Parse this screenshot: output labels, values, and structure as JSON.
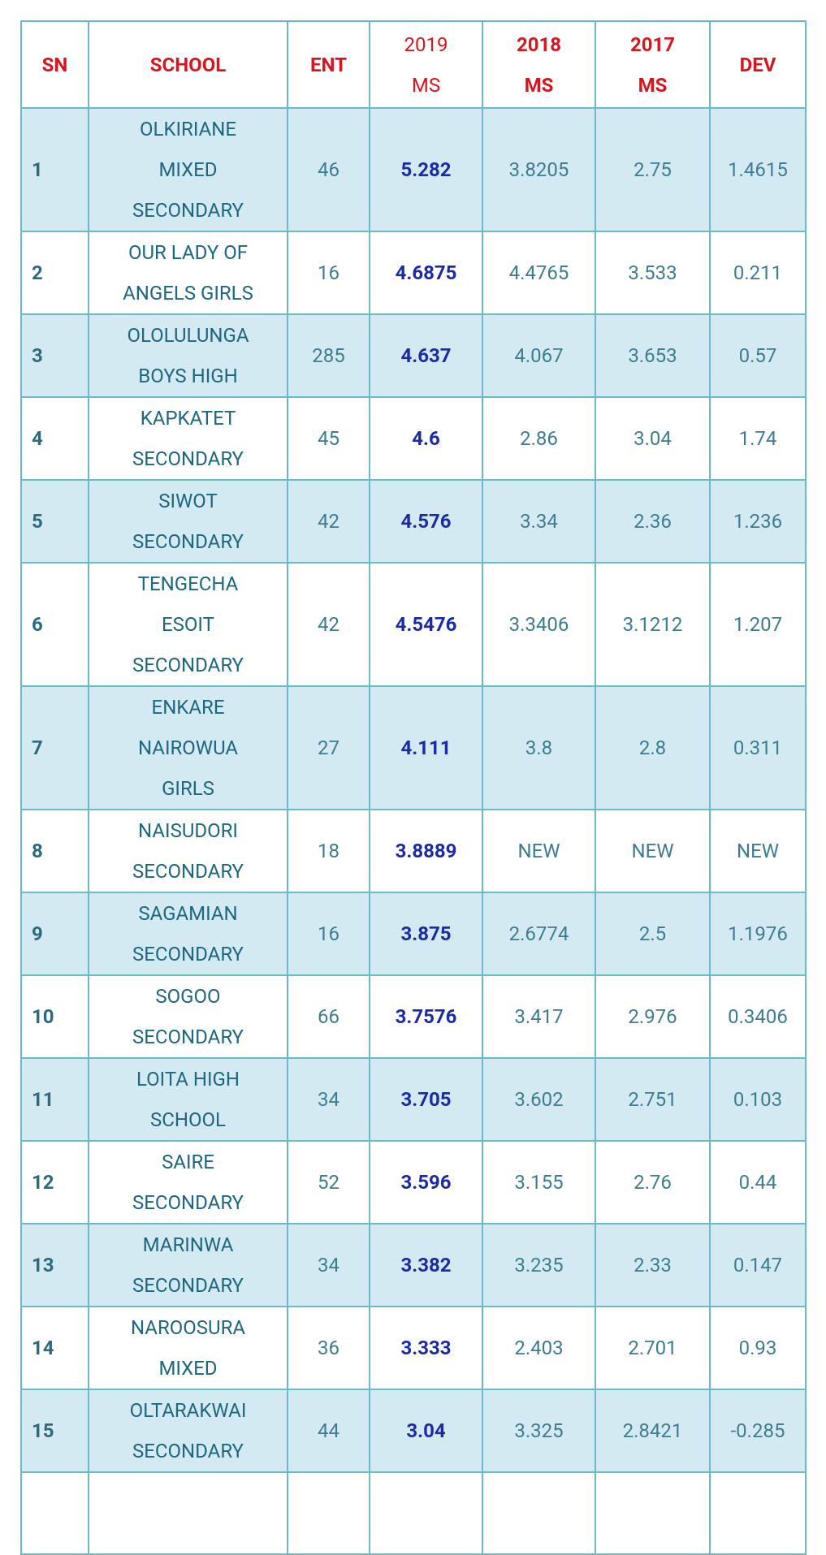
{
  "table": {
    "header": [
      [
        "SN"
      ],
      [
        "SCHOOL"
      ],
      [
        "ENT"
      ],
      [
        "2019",
        "MS"
      ],
      [
        "2018",
        "MS"
      ],
      [
        "2017",
        "MS"
      ],
      [
        "DEV"
      ]
    ],
    "rows": [
      [
        "1",
        [
          "OLKIRIANE",
          "MIXED",
          "SECONDARY"
        ],
        "46",
        "5.282",
        "3.8205",
        "2.75",
        "1.4615"
      ],
      [
        "2",
        [
          "OUR LADY OF",
          "ANGELS GIRLS"
        ],
        "16",
        "4.6875",
        "4.4765",
        "3.533",
        "0.211"
      ],
      [
        "3",
        [
          "OLOLULUNGA",
          "BOYS HIGH"
        ],
        "285",
        "4.637",
        "4.067",
        "3.653",
        "0.57"
      ],
      [
        "4",
        [
          "KAPKATET",
          "SECONDARY"
        ],
        "45",
        "4.6",
        "2.86",
        "3.04",
        "1.74"
      ],
      [
        "5",
        [
          "SIWOT",
          "SECONDARY"
        ],
        "42",
        "4.576",
        "3.34",
        "2.36",
        "1.236"
      ],
      [
        "6",
        [
          "TENGECHA",
          "ESOIT",
          "SECONDARY"
        ],
        "42",
        "4.5476",
        "3.3406",
        "3.1212",
        "1.207"
      ],
      [
        "7",
        [
          "ENKARE",
          "NAIROWUA",
          "GIRLS"
        ],
        "27",
        "4.111",
        "3.8",
        "2.8",
        "0.311"
      ],
      [
        "8",
        [
          "NAISUDORI",
          "SECONDARY"
        ],
        "18",
        "3.8889",
        "NEW",
        "NEW",
        "NEW"
      ],
      [
        "9",
        [
          "SAGAMIAN",
          "SECONDARY"
        ],
        "16",
        "3.875",
        "2.6774",
        "2.5",
        "1.1976"
      ],
      [
        "10",
        [
          "SOGOO",
          "SECONDARY"
        ],
        "66",
        "3.7576",
        "3.417",
        "2.976",
        "0.3406"
      ],
      [
        "11",
        [
          "LOITA HIGH",
          "SCHOOL"
        ],
        "34",
        "3.705",
        "3.602",
        "2.751",
        "0.103"
      ],
      [
        "12",
        [
          "SAIRE",
          "SECONDARY"
        ],
        "52",
        "3.596",
        "3.155",
        "2.76",
        "0.44"
      ],
      [
        "13",
        [
          "MARINWA",
          "SECONDARY"
        ],
        "34",
        "3.382",
        "3.235",
        "2.33",
        "0.147"
      ],
      [
        "14",
        [
          "NAROOSURA",
          "MIXED"
        ],
        "36",
        "3.333",
        "2.403",
        "2.701",
        "0.93"
      ],
      [
        "15",
        [
          "OLTARAKWAI",
          "SECONDARY"
        ],
        "44",
        "3.04",
        "3.325",
        "2.8421",
        "-0.285"
      ]
    ]
  }
}
